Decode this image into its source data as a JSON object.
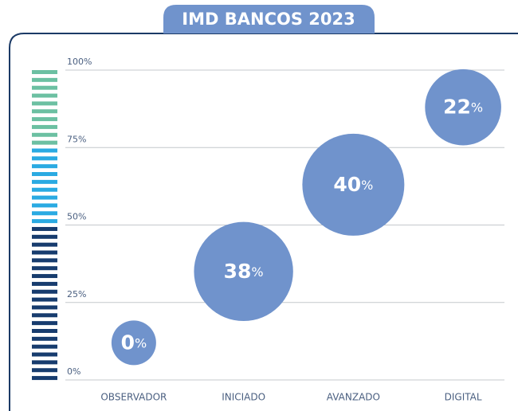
{
  "chart_data": {
    "type": "bubble",
    "title": "IMD BANCOS 2023",
    "categories": [
      "OBSERVADOR",
      "INICIADO",
      "AVANZADO",
      "DIGITAL"
    ],
    "values": [
      12,
      35,
      63,
      88
    ],
    "sizes": [
      0,
      38,
      40,
      22
    ],
    "value_labels": [
      "0%",
      "38%",
      "40%",
      "22%"
    ],
    "color": "#7093cc",
    "ylim": [
      0,
      100
    ],
    "yticks": [
      {
        "value": 0,
        "label": "0%"
      },
      {
        "value": 25,
        "label": "25%"
      },
      {
        "value": 50,
        "label": "50%"
      },
      {
        "value": 75,
        "label": "75%"
      },
      {
        "value": 100,
        "label": "100%"
      }
    ],
    "grid": true
  }
}
